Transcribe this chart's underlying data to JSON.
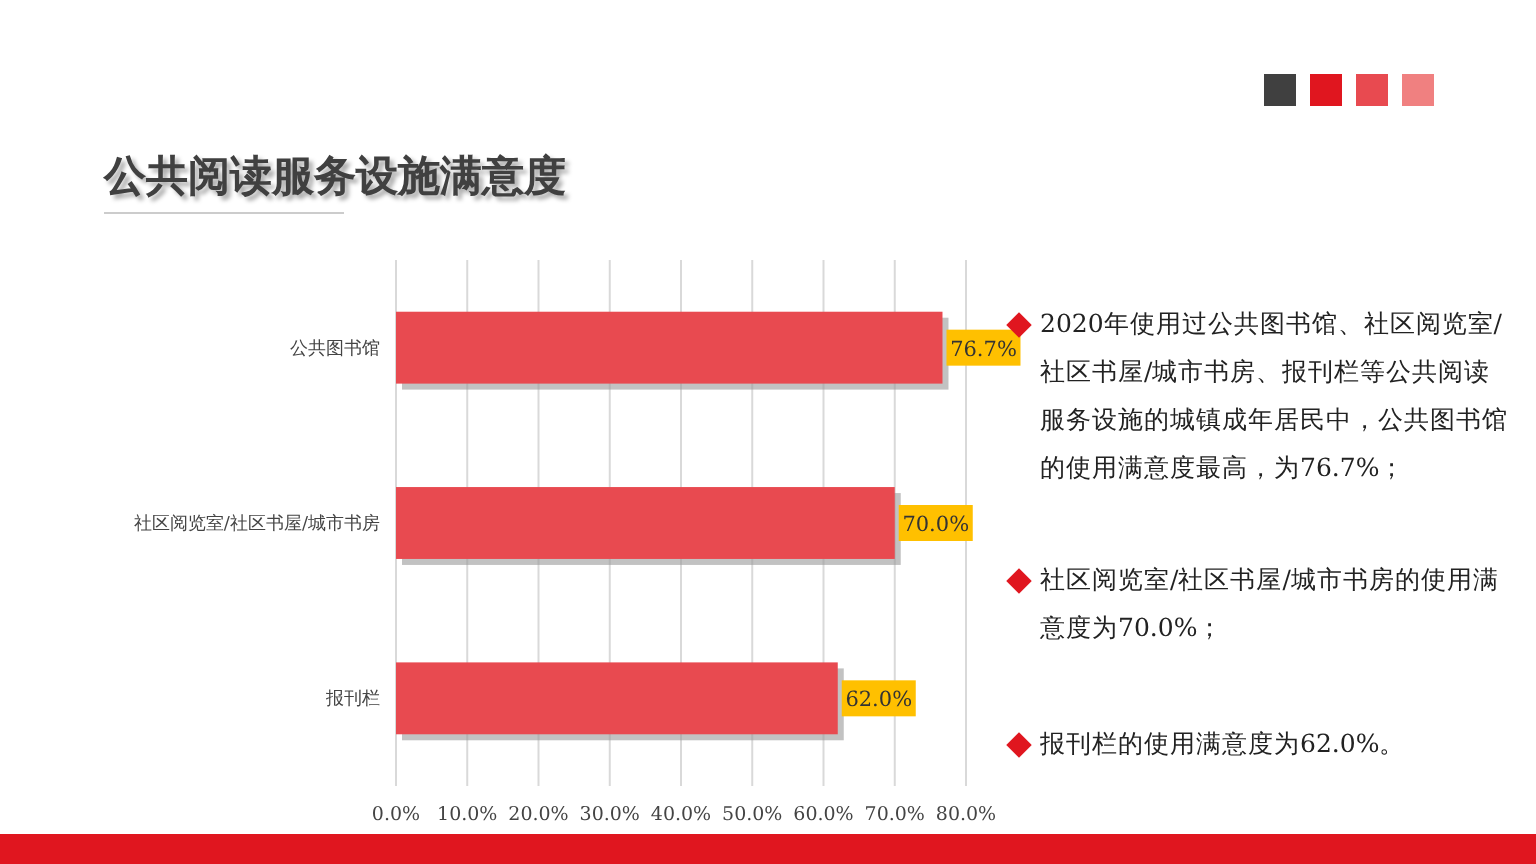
{
  "chart_data": {
    "type": "bar",
    "orientation": "horizontal",
    "title": "公共阅读服务设施满意度",
    "categories": [
      "公共图书馆",
      "社区阅览室/社区书屋/城市书房",
      "报刊栏"
    ],
    "values": [
      76.7,
      70.0,
      62.0
    ],
    "color": "#e84a50",
    "value_labels": [
      "76.7%",
      "70.0%",
      "62.0%"
    ],
    "xlim": [
      0,
      80
    ],
    "xticks": [
      {
        "value": 0,
        "label": "0.0%"
      },
      {
        "value": 10,
        "label": "10.0%"
      },
      {
        "value": 20,
        "label": "20.0%"
      },
      {
        "value": 30,
        "label": "30.0%"
      },
      {
        "value": 40,
        "label": "40.0%"
      },
      {
        "value": 50,
        "label": "50.0%"
      },
      {
        "value": 60,
        "label": "60.0%"
      },
      {
        "value": 70,
        "label": "70.0%"
      },
      {
        "value": 80,
        "label": "80.0%"
      }
    ],
    "grid": "x",
    "annotations": [
      "2020年使用过公共图书馆、社区阅览室/社区书屋/城市书房、报刊栏等公共阅读服务设施的城镇成年居民中，公共图书馆的使用满意度最高，为76.7%；",
      "社区阅览室/社区书屋/城市书房的使用满意度为70.0%；",
      "报刊栏的使用满意度为62.0%。"
    ]
  }
}
